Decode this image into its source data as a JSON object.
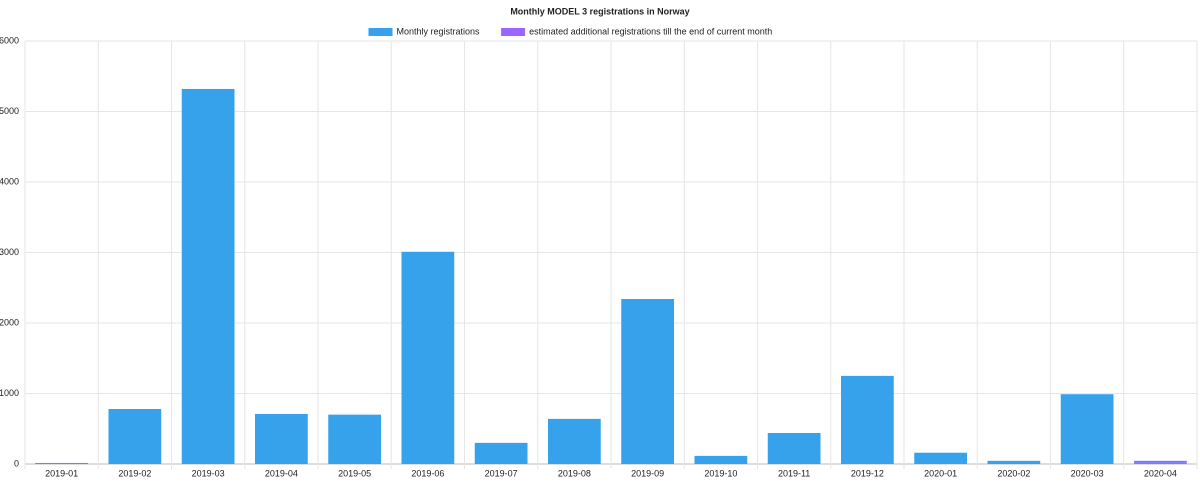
{
  "chart_data": {
    "type": "bar",
    "stacked": true,
    "title": "Monthly MODEL 3 registrations in Norway",
    "categories": [
      "2019-01",
      "2019-02",
      "2019-03",
      "2019-04",
      "2019-05",
      "2019-06",
      "2019-07",
      "2019-08",
      "2019-09",
      "2019-10",
      "2019-11",
      "2019-12",
      "2020-01",
      "2020-02",
      "2020-03",
      "2020-04"
    ],
    "series": [
      {
        "name": "Monthly registrations",
        "color": "#36a2eb",
        "values": [
          15,
          780,
          5320,
          710,
          700,
          3010,
          300,
          640,
          2340,
          115,
          440,
          1250,
          160,
          45,
          990,
          20
        ]
      },
      {
        "name": "estimated additional registrations till the end of current month",
        "color": "#9966ff",
        "values": [
          null,
          null,
          null,
          null,
          null,
          null,
          null,
          null,
          null,
          null,
          null,
          null,
          null,
          null,
          null,
          25
        ]
      }
    ],
    "ylim": [
      0,
      6000
    ],
    "yticks": [
      0,
      1000,
      2000,
      3000,
      4000,
      5000,
      6000
    ],
    "grid": true,
    "legend": "top"
  }
}
